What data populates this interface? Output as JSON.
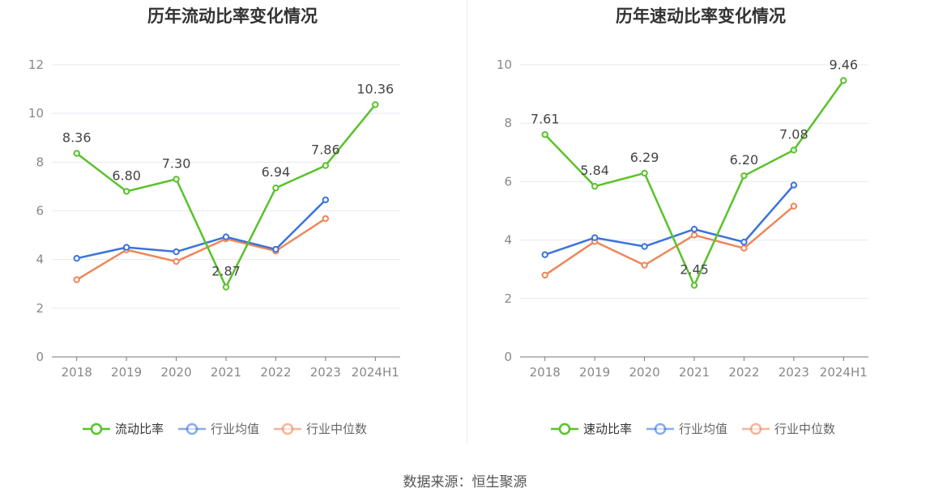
{
  "chart_data": [
    {
      "type": "line",
      "title": "历年流动比率变化情况",
      "categories": [
        "2018",
        "2019",
        "2020",
        "2021",
        "2022",
        "2023",
        "2024H1"
      ],
      "ylim": [
        0,
        12
      ],
      "yticks": [
        0,
        2,
        4,
        6,
        8,
        10,
        12
      ],
      "grid": true,
      "legend_position": "bottom",
      "series": [
        {
          "name": "流动比率",
          "color": "#5ac22a",
          "values": [
            8.36,
            6.8,
            7.3,
            2.87,
            6.94,
            7.86,
            10.36
          ],
          "labels": [
            "8.36",
            "6.80",
            "7.30",
            "2.87",
            "6.94",
            "7.86",
            "10.36"
          ]
        },
        {
          "name": "行业均值",
          "color": "#3b73dc",
          "values": [
            4.05,
            4.5,
            4.32,
            4.93,
            4.42,
            6.45,
            null
          ]
        },
        {
          "name": "行业中位数",
          "color": "#f0865a",
          "values": [
            3.17,
            4.4,
            3.92,
            4.85,
            4.35,
            5.68,
            null
          ]
        }
      ]
    },
    {
      "type": "line",
      "title": "历年速动比率变化情况",
      "categories": [
        "2018",
        "2019",
        "2020",
        "2021",
        "2022",
        "2023",
        "2024H1"
      ],
      "ylim": [
        0,
        10
      ],
      "yticks": [
        0,
        2,
        4,
        6,
        8,
        10
      ],
      "grid": true,
      "legend_position": "bottom",
      "series": [
        {
          "name": "速动比率",
          "color": "#5ac22a",
          "values": [
            7.61,
            5.84,
            6.29,
            2.45,
            6.2,
            7.08,
            9.46
          ],
          "labels": [
            "7.61",
            "5.84",
            "6.29",
            "2.45",
            "6.20",
            "7.08",
            "9.46"
          ]
        },
        {
          "name": "行业均值",
          "color": "#3b73dc",
          "values": [
            3.5,
            4.08,
            3.78,
            4.37,
            3.93,
            5.88,
            null
          ]
        },
        {
          "name": "行业中位数",
          "color": "#f0865a",
          "values": [
            2.8,
            3.95,
            3.14,
            4.17,
            3.72,
            5.16,
            null
          ]
        }
      ]
    }
  ],
  "footer": {
    "source": "数据来源：恒生聚源"
  }
}
